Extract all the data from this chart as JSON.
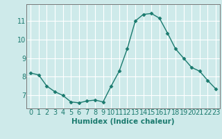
{
  "x": [
    0,
    1,
    2,
    3,
    4,
    5,
    6,
    7,
    8,
    9,
    10,
    11,
    12,
    13,
    14,
    15,
    16,
    17,
    18,
    19,
    20,
    21,
    22,
    23
  ],
  "y": [
    8.2,
    8.1,
    7.5,
    7.2,
    7.0,
    6.65,
    6.6,
    6.7,
    6.75,
    6.65,
    7.5,
    8.3,
    9.5,
    11.0,
    11.35,
    11.4,
    11.15,
    10.35,
    9.5,
    9.0,
    8.5,
    8.3,
    7.8,
    7.35
  ],
  "line_color": "#1a7a6e",
  "marker": "D",
  "marker_size": 2.5,
  "bg_color": "#ceeaea",
  "grid_color": "#ffffff",
  "xlabel": "Humidex (Indice chaleur)",
  "xlabel_fontsize": 7.5,
  "xlabel_color": "#1a7a6e",
  "tick_label_color": "#1a7a6e",
  "tick_fontsize": 7,
  "ylim": [
    6.3,
    11.9
  ],
  "yticks": [
    7,
    8,
    9,
    10,
    11
  ],
  "xticks": [
    0,
    1,
    2,
    3,
    4,
    5,
    6,
    7,
    8,
    9,
    10,
    11,
    12,
    13,
    14,
    15,
    16,
    17,
    18,
    19,
    20,
    21,
    22,
    23
  ],
  "xtick_labels": [
    "0",
    "1",
    "2",
    "3",
    "4",
    "5",
    "6",
    "7",
    "8",
    "9",
    "10",
    "11",
    "12",
    "13",
    "14",
    "15",
    "16",
    "17",
    "18",
    "19",
    "20",
    "21",
    "22",
    "23"
  ]
}
